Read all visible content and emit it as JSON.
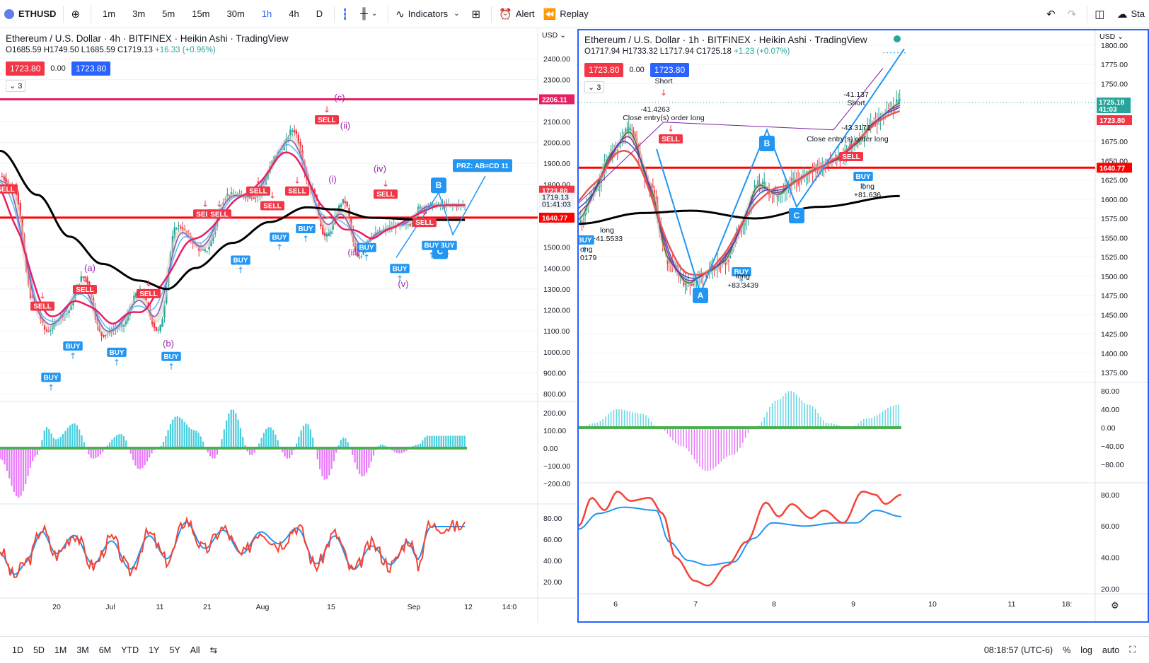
{
  "topbar": {
    "symbol": "ETHUSD",
    "timeframes": [
      "1m",
      "3m",
      "5m",
      "15m",
      "30m",
      "1h",
      "4h",
      "D"
    ],
    "active_timeframe": "1h",
    "indicators_label": "Indicators",
    "alert_label": "Alert",
    "replay_label": "Replay",
    "right_label": "Sta"
  },
  "left_chart": {
    "title": "Ethereum / U.S. Dollar · 4h · BITFINEX · Heikin Ashi · TradingView",
    "ohlc": {
      "o": "O1685.59",
      "h": "H1749.50",
      "l": "L1685.59",
      "c": "C1719.13",
      "chg": "+16.33 (+0.96%)"
    },
    "price_box_red": "1723.80",
    "spread": "0.00",
    "price_box_blue": "1723.80",
    "collapse": "3",
    "currency": "USD",
    "y_ticks": [
      "2400.00",
      "2300.00",
      "2100.00",
      "2000.00",
      "1900.00",
      "1800.00",
      "1500.00",
      "1400.00",
      "1300.00",
      "1200.00",
      "1100.00",
      "1000.00",
      "900.00",
      "800.00"
    ],
    "price_labels": {
      "resistance": "2206.11",
      "last": "1723.80",
      "close": "1719.13",
      "countdown": "01:41:03",
      "support": "1640.77"
    },
    "prz_label": "PRZ: AB=CD 11",
    "osc_ticks": [
      "200.00",
      "100.00",
      "0.00",
      "−100.00",
      "−200.00"
    ],
    "rsi_ticks": [
      "80.00",
      "60.00",
      "40.00",
      "20.00"
    ],
    "x_ticks": [
      "20",
      "Jul",
      "11",
      "21",
      "Aug",
      "15",
      "Sep",
      "12",
      "14:0"
    ],
    "waves": [
      "(a)",
      "(b)",
      "(c)",
      "(i)",
      "(ii)",
      "(iii)",
      "(iv)",
      "(v)"
    ],
    "abc_labels": [
      "B",
      "C"
    ],
    "buy_label": "BUY",
    "sell_label": "SELL"
  },
  "right_chart": {
    "title": "Ethereum / U.S. Dollar · 1h · BITFINEX · Heikin Ashi · TradingView",
    "ohlc": {
      "o": "O1717.94",
      "h": "H1733.32",
      "l": "L1717.94",
      "c": "C1725.18",
      "chg": "+1.23 (+0.07%)"
    },
    "price_box_red": "1723.80",
    "spread": "0.00",
    "price_box_blue": "1723.80",
    "collapse": "3",
    "currency": "USD",
    "y_ticks": [
      "1800.00",
      "1775.00",
      "1750.00",
      "1675.00",
      "1650.00",
      "1625.00",
      "1600.00",
      "1575.00",
      "1550.00",
      "1525.00",
      "1500.00",
      "1475.00",
      "1450.00",
      "1425.00",
      "1400.00",
      "1375.00"
    ],
    "price_labels": {
      "close": "1725.18",
      "countdown": "41:03",
      "last": "1723.80",
      "support": "1640.77"
    },
    "osc_ticks": [
      "80.00",
      "40.00",
      "0.00",
      "−40.00",
      "−80.00"
    ],
    "rsi_ticks": [
      "80.00",
      "60.00",
      "40.00",
      "20.00"
    ],
    "x_ticks": [
      "6",
      "7",
      "8",
      "9",
      "10",
      "11",
      "18:"
    ],
    "annotations": {
      "short1": "Short",
      "short1_val": "-41.4263",
      "close_long1": "Close entry(s) order long",
      "long1": "long",
      "long1_val": "+41.5533",
      "long0_val": "0179",
      "long0": "ong",
      "long2": "long",
      "long2_val": "+83.3439",
      "short2_val": "-41.137",
      "short2": "Short",
      "close_long2_val": "-43.3171",
      "close_long2": "Close entry(s) order long",
      "long3": "long",
      "long3_val": "+81.636"
    },
    "abc_labels": [
      "A",
      "B",
      "C"
    ],
    "buy_label": "BUY",
    "sell_label": "SELL"
  },
  "bottombar": {
    "ranges": [
      "1D",
      "5D",
      "1M",
      "3M",
      "6M",
      "YTD",
      "1Y",
      "5Y",
      "All"
    ],
    "time": "08:18:57 (UTC-6)",
    "percent": "%",
    "log": "log",
    "auto": "auto"
  },
  "colors": {
    "up": "#26a69a",
    "down": "#f23645",
    "ema_black": "#000000",
    "ema_red": "#e91e63",
    "support_red": "#ff0000",
    "resistance": "#e91e63",
    "pattern_blue": "#2196f3",
    "tv_blue": "#2962ff"
  }
}
